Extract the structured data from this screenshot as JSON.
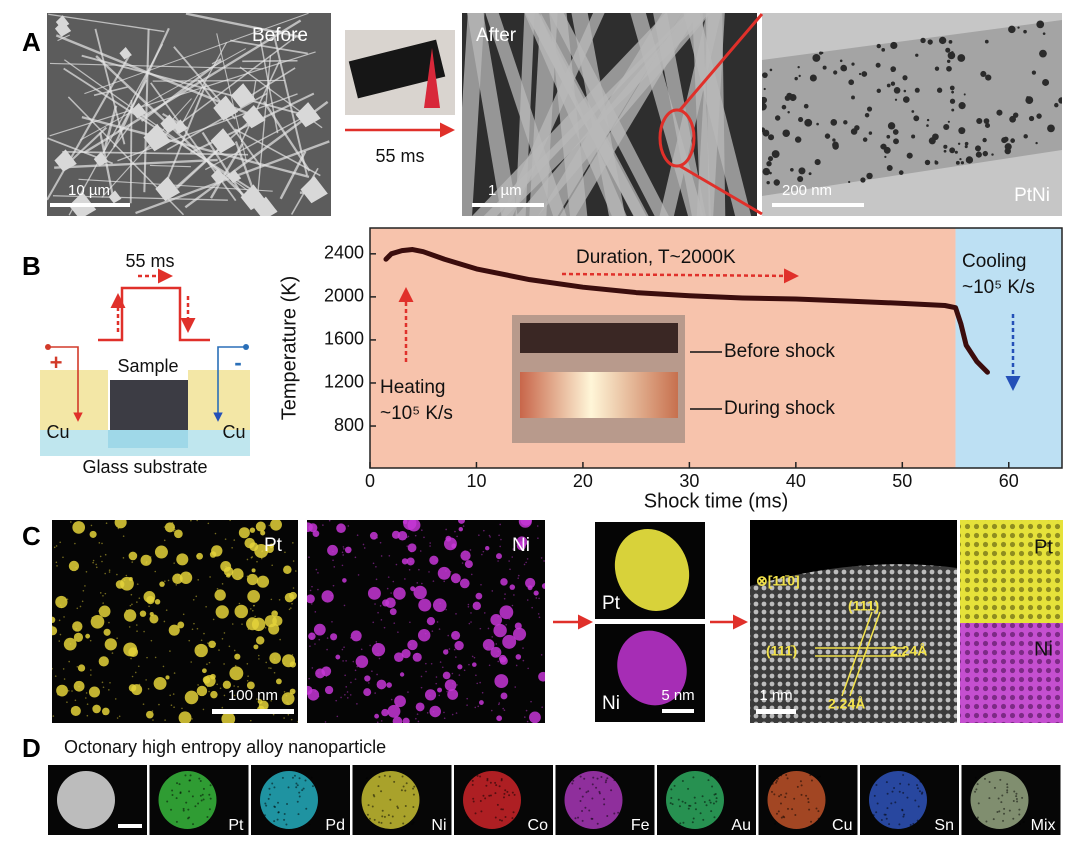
{
  "panels": {
    "A": {
      "label": "A",
      "before": "Before",
      "arrow_label": "55 ms",
      "after": "After",
      "scale_bars": [
        "10 µm",
        "1 µm",
        "200 nm"
      ],
      "sample": "PtNi"
    },
    "B": {
      "label": "B",
      "pulse": "55 ms",
      "sample": "Sample",
      "electrodes": [
        "Cu",
        "Cu"
      ],
      "polarity": [
        "+",
        "-"
      ],
      "substrate": "Glass substrate",
      "inset_labels": [
        "Before shock",
        "During shock"
      ]
    },
    "C": {
      "label": "C",
      "maps": [
        "Pt",
        "Ni"
      ],
      "map_scale": "100 nm",
      "particle": [
        "Pt",
        "Ni"
      ],
      "particle_scale": "5 nm",
      "zone_axis": "⊗[11̄0]",
      "planes": [
        "(111)",
        "(111̄)"
      ],
      "spacings": [
        "2.24Å",
        "2.24Å"
      ],
      "hrtem_scale": "1 nm",
      "strip": [
        "Pt",
        "Ni"
      ]
    },
    "D": {
      "label": "D",
      "title": "Octonary high entropy alloy nanoparticle",
      "elements": [
        "Pt",
        "Pd",
        "Ni",
        "Co",
        "Fe",
        "Au",
        "Cu",
        "Sn",
        "Mix"
      ]
    }
  },
  "chart_data": {
    "type": "line",
    "x_label": "Shock time (ms)",
    "y_label": "Temperature (K)",
    "x": [
      1.5,
      2,
      3,
      4,
      5,
      7,
      10,
      15,
      20,
      25,
      30,
      35,
      40,
      45,
      50,
      54,
      55,
      55.5,
      56,
      57,
      58
    ],
    "values": [
      2350,
      2400,
      2430,
      2440,
      2420,
      2350,
      2260,
      2160,
      2090,
      2040,
      2010,
      1990,
      1980,
      1960,
      1940,
      1920,
      1900,
      1750,
      1550,
      1400,
      1300
    ],
    "color": "#3b0d0d",
    "xlim": [
      0,
      65
    ],
    "xticks": [
      0,
      10,
      20,
      30,
      40,
      50,
      60
    ],
    "ylim": [
      410,
      2640
    ],
    "yticks": [
      800,
      1200,
      1600,
      2000,
      2400
    ],
    "shaded_regions": [
      {
        "from": 0,
        "to": 55,
        "color": "#f7c3ac"
      },
      {
        "from": 55,
        "to": 65,
        "color": "#bde0f3"
      }
    ],
    "annotations": {
      "duration": "Duration, T~2000K",
      "cooling": [
        "Cooling",
        "~10⁵ K/s"
      ],
      "heating": [
        "Heating",
        "~10⁵ K/s"
      ]
    }
  }
}
